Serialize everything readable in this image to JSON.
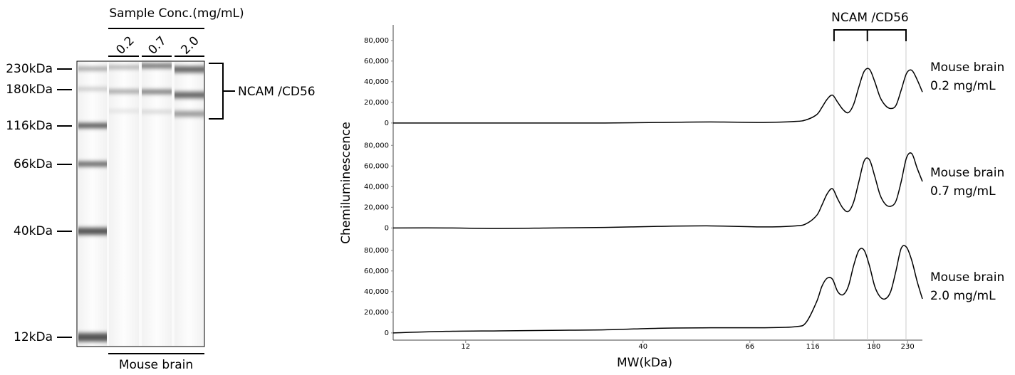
{
  "gel": {
    "title": "Sample Conc.(mg/mL)",
    "lanes": [
      "0.2",
      "0.7",
      "2.0"
    ],
    "sample": "Mouse brain",
    "markers": [
      "230kDa",
      "180kDa",
      "116kDa",
      "66kDa",
      "40kDa",
      "12kDa"
    ],
    "bracket_label": "NCAM /CD56"
  },
  "chart_data": {
    "type": "line",
    "y_label": "Chemiluminescence",
    "x_label": "MW(kDa)",
    "x": [
      0,
      10,
      20,
      30,
      40,
      50,
      60,
      70,
      76,
      78,
      80,
      81,
      82,
      83,
      84,
      85,
      86,
      87,
      88,
      89,
      90,
      91,
      92,
      93,
      94,
      95,
      96,
      97,
      98,
      99,
      100
    ],
    "xlim": [
      0,
      100
    ],
    "xticks": [
      {
        "value": 13.7,
        "label": "12"
      },
      {
        "value": 47.2,
        "label": "40"
      },
      {
        "value": 67.4,
        "label": "66"
      },
      {
        "value": 79.3,
        "label": "116"
      },
      {
        "value": 90.8,
        "label": "180"
      },
      {
        "value": 97.2,
        "label": "230"
      }
    ],
    "ylim": [
      -7000,
      95000
    ],
    "yticks": [
      0,
      {
        "value": 20000,
        "label": "20,000"
      },
      {
        "value": 40000,
        "label": "40,000"
      },
      {
        "value": 60000,
        "label": "60,000"
      },
      {
        "value": 80000,
        "label": "80,000"
      }
    ],
    "annotation": {
      "label": "NCAM /CD56",
      "x": [
        83.3,
        89.6,
        96.9
      ]
    },
    "series": [
      {
        "name": "Mouse brain 0.2 mg/mL",
        "color": "#000000",
        "values": [
          0,
          0,
          0,
          0,
          0,
          500,
          1000,
          500,
          1500,
          3000,
          8000,
          15000,
          23000,
          27000,
          20000,
          13000,
          10000,
          18000,
          35000,
          50000,
          52000,
          40000,
          25000,
          17000,
          14000,
          17000,
          32000,
          48000,
          51000,
          42000,
          30000
        ]
      },
      {
        "name": "Mouse brain 0.7 mg/mL",
        "color": "#000000",
        "values": [
          0,
          0,
          -500,
          0,
          500,
          1500,
          2000,
          1000,
          2000,
          4000,
          12000,
          22000,
          33000,
          38000,
          28000,
          19000,
          16000,
          25000,
          45000,
          65000,
          66000,
          50000,
          32000,
          23000,
          21000,
          26000,
          45000,
          68000,
          72000,
          58000,
          45000
        ]
      },
      {
        "name": "Mouse brain 2.0 mg/mL",
        "color": "#000000",
        "values": [
          0,
          1500,
          2000,
          2500,
          3000,
          4500,
          5000,
          5000,
          6000,
          10000,
          30000,
          45000,
          53000,
          52000,
          40000,
          37000,
          45000,
          65000,
          80000,
          80000,
          65000,
          45000,
          35000,
          33000,
          40000,
          60000,
          82000,
          83000,
          70000,
          50000,
          33000
        ]
      }
    ]
  }
}
